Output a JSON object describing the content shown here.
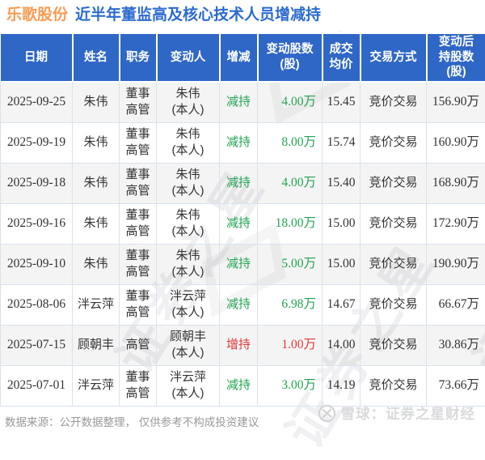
{
  "title": {
    "stock_name": "乐歌股份",
    "subtitle": "近半年董监高及核心技术人员增减持"
  },
  "chart_data": {
    "type": "table",
    "title": "乐歌股份 近半年董监高及核心技术人员增减持",
    "columns": [
      "日期",
      "姓名",
      "职务",
      "变动人",
      "增减",
      "变动股数\n(股)",
      "成交\n均价",
      "交易方式",
      "变动后\n持股数\n(股)"
    ],
    "rows": [
      {
        "date": "2025-09-25",
        "name": "朱伟",
        "position": "董事\n高管",
        "changer": "朱伟\n(本人)",
        "direction": "减持",
        "direction_type": "decrease",
        "change_shares": "4.00万",
        "avg_price": "15.45",
        "trade_method": "竞价交易",
        "shares_after": "156.90万"
      },
      {
        "date": "2025-09-19",
        "name": "朱伟",
        "position": "董事\n高管",
        "changer": "朱伟\n(本人)",
        "direction": "减持",
        "direction_type": "decrease",
        "change_shares": "8.00万",
        "avg_price": "15.74",
        "trade_method": "竞价交易",
        "shares_after": "160.90万"
      },
      {
        "date": "2025-09-18",
        "name": "朱伟",
        "position": "董事\n高管",
        "changer": "朱伟\n(本人)",
        "direction": "减持",
        "direction_type": "decrease",
        "change_shares": "4.00万",
        "avg_price": "15.40",
        "trade_method": "竞价交易",
        "shares_after": "168.90万"
      },
      {
        "date": "2025-09-16",
        "name": "朱伟",
        "position": "董事\n高管",
        "changer": "朱伟\n(本人)",
        "direction": "减持",
        "direction_type": "decrease",
        "change_shares": "18.00万",
        "avg_price": "15.00",
        "trade_method": "竞价交易",
        "shares_after": "172.90万"
      },
      {
        "date": "2025-09-10",
        "name": "朱伟",
        "position": "董事\n高管",
        "changer": "朱伟\n(本人)",
        "direction": "减持",
        "direction_type": "decrease",
        "change_shares": "5.00万",
        "avg_price": "15.00",
        "trade_method": "竞价交易",
        "shares_after": "190.90万"
      },
      {
        "date": "2025-08-06",
        "name": "泮云萍",
        "position": "董事\n高管",
        "changer": "泮云萍\n(本人)",
        "direction": "减持",
        "direction_type": "decrease",
        "change_shares": "6.98万",
        "avg_price": "14.67",
        "trade_method": "竞价交易",
        "shares_after": "66.67万"
      },
      {
        "date": "2025-07-15",
        "name": "顾朝丰",
        "position": "高管",
        "changer": "顾朝丰\n(本人)",
        "direction": "增持",
        "direction_type": "increase",
        "change_shares": "1.00万",
        "avg_price": "14.00",
        "trade_method": "竞价交易",
        "shares_after": "30.86万"
      },
      {
        "date": "2025-07-01",
        "name": "泮云萍",
        "position": "董事\n高管",
        "changer": "泮云萍\n(本人)",
        "direction": "减持",
        "direction_type": "decrease",
        "change_shares": "3.00万",
        "avg_price": "14.19",
        "trade_method": "竞价交易",
        "shares_after": "73.66万"
      }
    ]
  },
  "watermark": {
    "text": "证券之星"
  },
  "footer": {
    "source_note": "数据来源：公开数据整理， 仅供参考不构成投资建议",
    "brand_text": "雪球：证券之星财经"
  },
  "colors": {
    "header_bg": "#2f67c6",
    "title_stock": "#f89c54",
    "title_main": "#2c6bd0",
    "decrease_green": "#21a452",
    "increase_red": "#e23636",
    "row_stripe": "#f4f4f4",
    "cell_border": "#d9e2ee",
    "footer_gray": "#999999",
    "brand_gray": "#d9dadc"
  }
}
